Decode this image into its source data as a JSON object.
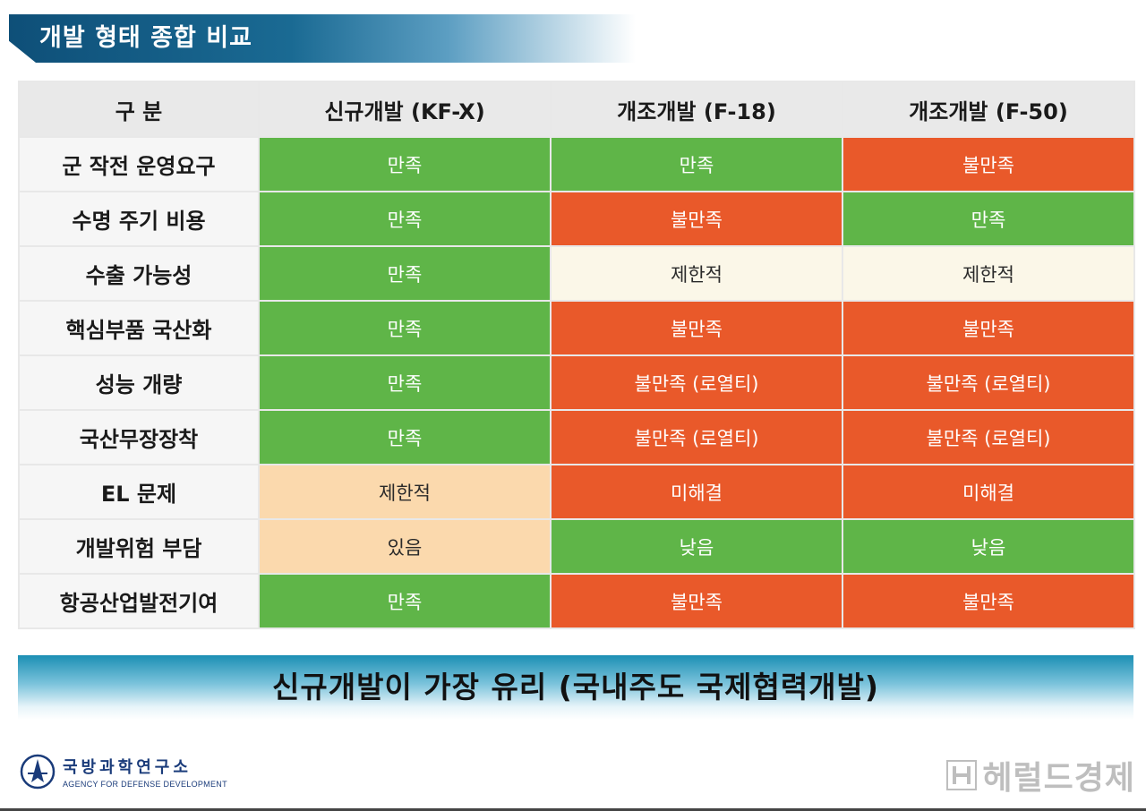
{
  "title": "개발 형태 종합 비교",
  "table": {
    "headers": [
      "구 분",
      "신규개발 (KF-X)",
      "개조개발 (F-18)",
      "개조개발 (F-50)"
    ],
    "rows": [
      {
        "label": "군 작전 운영요구",
        "cells": [
          {
            "text": "만족",
            "status": "good"
          },
          {
            "text": "만족",
            "status": "good"
          },
          {
            "text": "불만족",
            "status": "bad"
          }
        ]
      },
      {
        "label": "수명 주기 비용",
        "cells": [
          {
            "text": "만족",
            "status": "good"
          },
          {
            "text": "불만족",
            "status": "bad"
          },
          {
            "text": "만족",
            "status": "good"
          }
        ]
      },
      {
        "label": "수출 가능성",
        "cells": [
          {
            "text": "만족",
            "status": "good"
          },
          {
            "text": "제한적",
            "status": "limited"
          },
          {
            "text": "제한적",
            "status": "limited"
          }
        ]
      },
      {
        "label": "핵심부품 국산화",
        "cells": [
          {
            "text": "만족",
            "status": "good"
          },
          {
            "text": "불만족",
            "status": "bad"
          },
          {
            "text": "불만족",
            "status": "bad"
          }
        ]
      },
      {
        "label": "성능 개량",
        "cells": [
          {
            "text": "만족",
            "status": "good"
          },
          {
            "text": "불만족 (로열티)",
            "status": "bad"
          },
          {
            "text": "불만족 (로열티)",
            "status": "bad"
          }
        ]
      },
      {
        "label": "국산무장장착",
        "cells": [
          {
            "text": "만족",
            "status": "good"
          },
          {
            "text": "불만족 (로열티)",
            "status": "bad"
          },
          {
            "text": "불만족 (로열티)",
            "status": "bad"
          }
        ]
      },
      {
        "label": "EL 문제",
        "cells": [
          {
            "text": "제한적",
            "status": "caution"
          },
          {
            "text": "미해결",
            "status": "bad"
          },
          {
            "text": "미해결",
            "status": "bad"
          }
        ]
      },
      {
        "label": "개발위험 부담",
        "cells": [
          {
            "text": "있음",
            "status": "caution"
          },
          {
            "text": "낮음",
            "status": "good"
          },
          {
            "text": "낮음",
            "status": "good"
          }
        ]
      },
      {
        "label": "항공산업발전기여",
        "cells": [
          {
            "text": "만족",
            "status": "good"
          },
          {
            "text": "불만족",
            "status": "bad"
          },
          {
            "text": "불만족",
            "status": "bad"
          }
        ]
      }
    ]
  },
  "conclusion": "신규개발이 가장 유리 (국내주도 국제협력개발)",
  "agency": {
    "name_ko": "국방과학연구소",
    "name_en": "AGENCY FOR DEFENSE DEVELOPMENT",
    "logo_icon": "agency-emblem-icon"
  },
  "watermark": {
    "text": "헤럴드경제",
    "logo_icon": "herald-logo-icon"
  },
  "colors": {
    "good": "#5fb548",
    "bad": "#e9592a",
    "limited": "#fbf7e8",
    "caution": "#fbd9ad",
    "title_banner": "#0e4f78",
    "conclusion_banner": "#1c8fb4"
  }
}
